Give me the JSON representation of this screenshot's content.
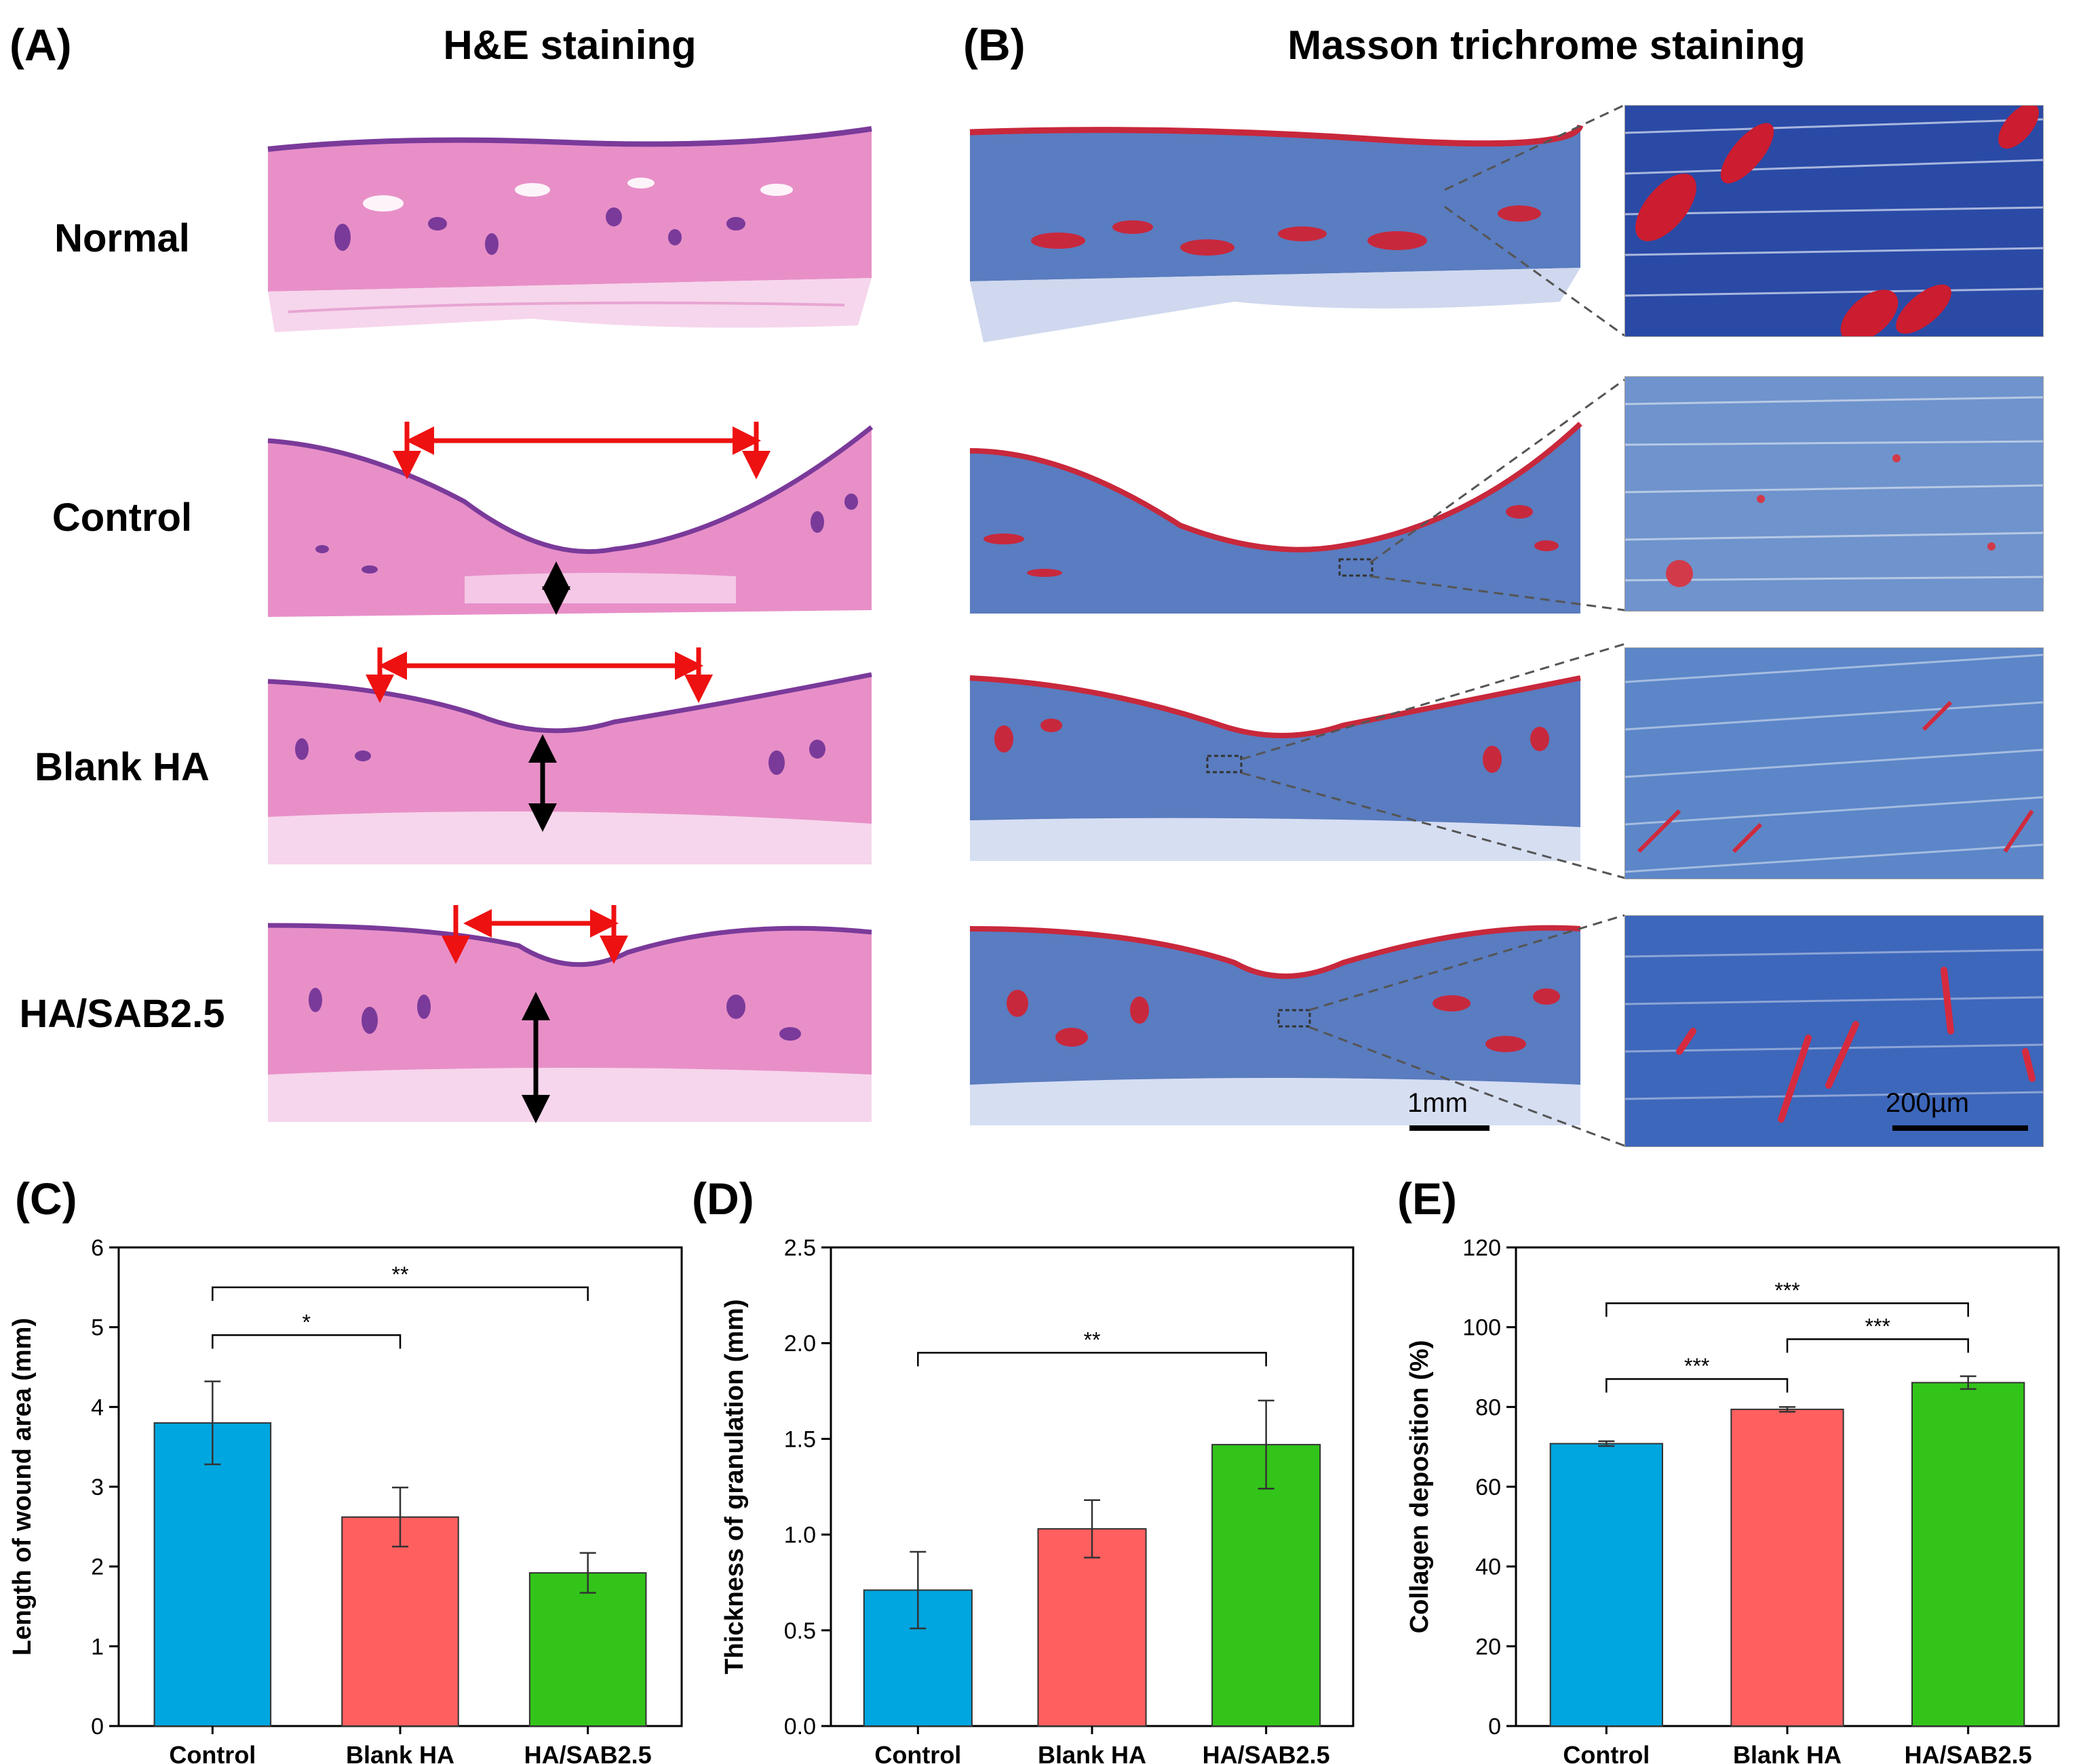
{
  "panels": {
    "A": {
      "letter": "(A)",
      "title": "H&E staining"
    },
    "B": {
      "letter": "(B)",
      "title": "Masson trichrome staining"
    },
    "C": {
      "letter": "(C)"
    },
    "D": {
      "letter": "(D)"
    },
    "E": {
      "letter": "(E)"
    }
  },
  "rows": [
    "Normal",
    "Control",
    "Blank HA",
    "HA/SAB2.5"
  ],
  "scale_bars": {
    "overview": "1mm",
    "inset": "200µm"
  },
  "colors": {
    "he_pink": "#e88fc8",
    "he_purple": "#7a3a9a",
    "masson_blue": "#5a7cc0",
    "masson_red": "#c8283c",
    "arrow_red": "#ee1111",
    "bar_control": "#00a6df",
    "bar_blank": "#ff5f5f",
    "bar_hasab": "#33c41a"
  },
  "chart_data": [
    {
      "type": "bar",
      "categories": [
        "Control",
        "Blank HA",
        "HA/SAB2.5"
      ],
      "values": [
        3.8,
        2.62,
        1.92
      ],
      "errors": [
        0.52,
        0.37,
        0.25
      ],
      "ylabel": "Length of wound area (mm)",
      "ylim": [
        0,
        6
      ],
      "yticks": [
        "0",
        "1",
        "2",
        "3",
        "4",
        "5",
        "6"
      ],
      "significance": [
        {
          "from": 0,
          "to": 1,
          "label": "*",
          "y": 4.9
        },
        {
          "from": 0,
          "to": 2,
          "label": "**",
          "y": 5.5
        }
      ]
    },
    {
      "type": "bar",
      "categories": [
        "Control",
        "Blank HA",
        "HA/SAB2.5"
      ],
      "values": [
        0.71,
        1.03,
        1.47
      ],
      "errors": [
        0.2,
        0.15,
        0.23
      ],
      "ylabel": "Thickness of granulation (mm)",
      "ylim": [
        0,
        2.5
      ],
      "yticks": [
        "0.0",
        "0.5",
        "1.0",
        "1.5",
        "2.0",
        "2.5"
      ],
      "significance": [
        {
          "from": 0,
          "to": 2,
          "label": "**",
          "y": 1.95
        }
      ]
    },
    {
      "type": "bar",
      "categories": [
        "Control",
        "Blank HA",
        "HA/SAB2.5"
      ],
      "values": [
        70.8,
        79.4,
        86.1
      ],
      "errors": [
        0.6,
        0.6,
        1.6
      ],
      "ylabel": "Collagen deposition (%)",
      "ylim": [
        0,
        120
      ],
      "yticks": [
        "0",
        "20",
        "40",
        "60",
        "80",
        "100",
        "120"
      ],
      "significance": [
        {
          "from": 0,
          "to": 1,
          "label": "***",
          "y": 87
        },
        {
          "from": 1,
          "to": 2,
          "label": "***",
          "y": 97
        },
        {
          "from": 0,
          "to": 2,
          "label": "***",
          "y": 106
        }
      ]
    }
  ]
}
